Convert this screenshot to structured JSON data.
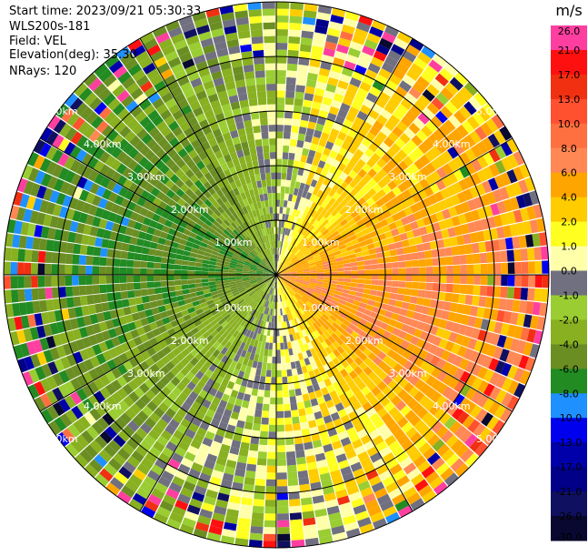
{
  "header": {
    "start_time": "Start time: 2023/09/21 05:30:33",
    "instrument": "WLS200s-181",
    "field": "Field: VEL",
    "elevation": "Elevation(deg): 35.30",
    "nrays": "NRays: 120"
  },
  "chart_data": {
    "type": "heatmap",
    "projection": "polar-ppi",
    "field": "VEL",
    "rays": 120,
    "max_range_km": 5.0,
    "range_rings_km": [
      1.0,
      2.0,
      3.0,
      4.0,
      5.0
    ],
    "ring_labels": [
      "1.00km",
      "2.00km",
      "3.00km",
      "4.00km",
      "5.00km"
    ],
    "sectors_summary": [
      {
        "azimuth_deg": 0,
        "velocity_ms": -1.0
      },
      {
        "azimuth_deg": 30,
        "velocity_ms": 2.0
      },
      {
        "azimuth_deg": 60,
        "velocity_ms": 4.0
      },
      {
        "azimuth_deg": 90,
        "velocity_ms": 6.0
      },
      {
        "azimuth_deg": 120,
        "velocity_ms": 6.0
      },
      {
        "azimuth_deg": 150,
        "velocity_ms": 2.0
      },
      {
        "azimuth_deg": 180,
        "velocity_ms": 0.0
      },
      {
        "azimuth_deg": 210,
        "velocity_ms": -2.0
      },
      {
        "azimuth_deg": 240,
        "velocity_ms": -4.0
      },
      {
        "azimuth_deg": 270,
        "velocity_ms": -6.0
      },
      {
        "azimuth_deg": 300,
        "velocity_ms": -6.0
      },
      {
        "azimuth_deg": 330,
        "velocity_ms": -4.0
      }
    ],
    "colorbar": {
      "unit": "m/s",
      "ticks": [
        "26.0",
        "21.0",
        "17.0",
        "13.0",
        "10.0",
        "8.0",
        "6.0",
        "4.0",
        "2.0",
        "1.0",
        "0.0",
        "-1.0",
        "-2.0",
        "-4.0",
        "-6.0",
        "-8.0",
        "-10.0",
        "-13.0",
        "-17.0",
        "-21.0",
        "-26.0",
        "-30.0"
      ],
      "colors": [
        "#ff3fa0",
        "#ff1010",
        "#f03010",
        "#ff5030",
        "#ff7040",
        "#ff8855",
        "#ffa500",
        "#ffcc00",
        "#ffff20",
        "#ffffaa",
        "#707080",
        "#9acd32",
        "#88b020",
        "#6b8e23",
        "#228b22",
        "#1e90ff",
        "#0000ee",
        "#0000aa",
        "#000088",
        "#101060",
        "#080830"
      ]
    }
  }
}
